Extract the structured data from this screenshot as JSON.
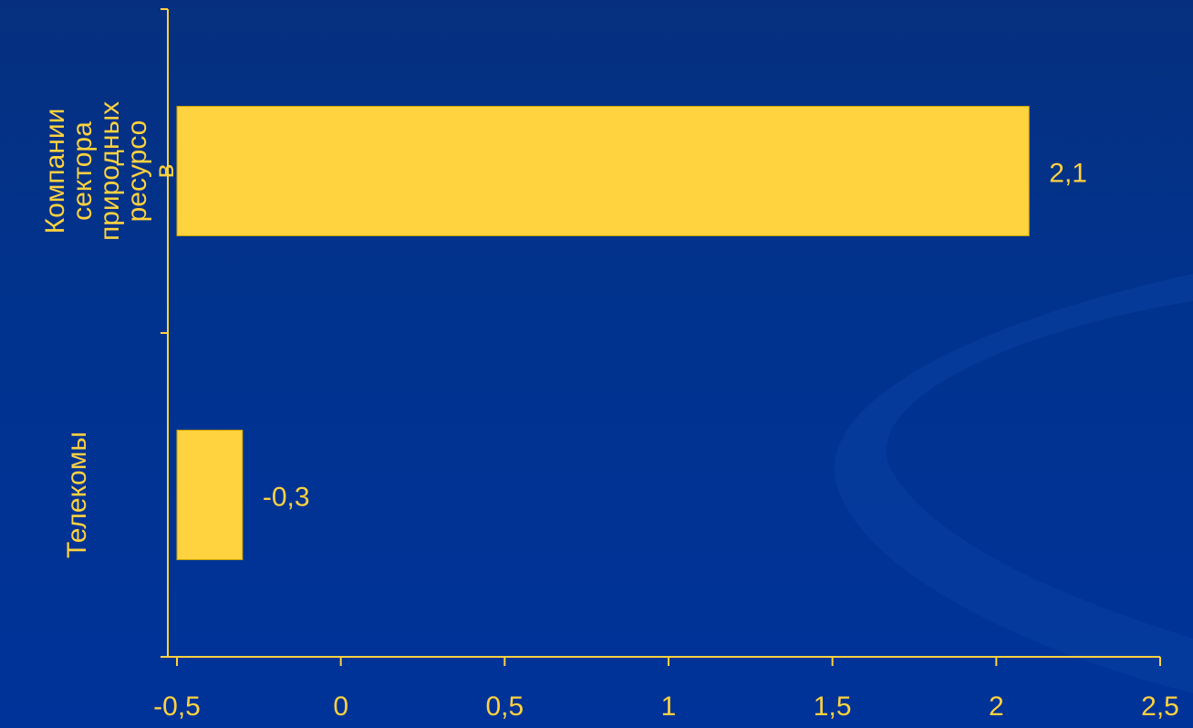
{
  "colors": {
    "background": "#00338f",
    "bar": "#ffd23f",
    "bar_outline": "#c8a000",
    "axis": "#ffd23f",
    "text": "#ffd23f",
    "swoosh": "#0a3fa3"
  },
  "chart_data": {
    "type": "bar",
    "orientation": "horizontal",
    "title": "",
    "xlabel": "",
    "ylabel": "",
    "categories": [
      [
        "Компании",
        "сектора",
        "природных",
        "ресурсо",
        "в"
      ],
      [
        "Телекомы"
      ]
    ],
    "values": [
      2.1,
      -0.3
    ],
    "data_labels": [
      "2,1",
      "-0,3"
    ],
    "xlim": [
      -0.5,
      2.5
    ],
    "ticks": [
      -0.5,
      0,
      0.5,
      1,
      1.5,
      2,
      2.5
    ],
    "tick_labels": [
      "-0,5",
      "0",
      "0,5",
      "1",
      "1,5",
      "2",
      "2,5"
    ],
    "grid": false,
    "legend": "none"
  }
}
